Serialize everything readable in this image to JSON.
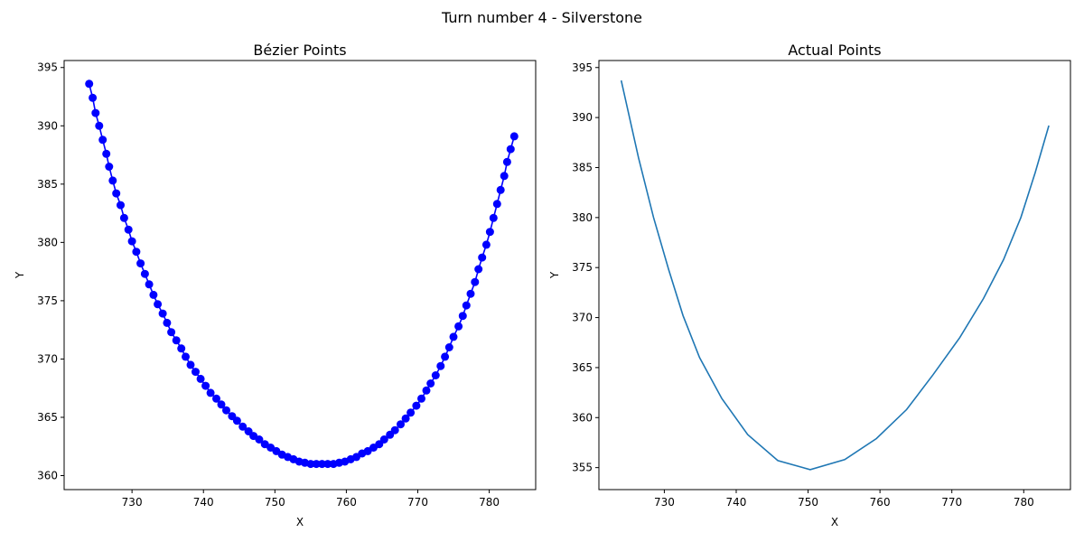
{
  "figure_title": "Turn number 4 - Silverstone",
  "chart_data": [
    {
      "type": "line",
      "title": "Bézier Points",
      "xlabel": "X",
      "ylabel": "Y",
      "xlim": [
        720.5,
        786.5
      ],
      "ylim": [
        358.8,
        395.6
      ],
      "xticks": [
        730,
        740,
        750,
        760,
        770,
        780
      ],
      "yticks": [
        360,
        365,
        370,
        375,
        380,
        385,
        390,
        395
      ],
      "line_color": "#0000ff",
      "markers": true,
      "series": [
        {
          "x": [
            724.0,
            724.5,
            724.9,
            725.4,
            725.9,
            726.4,
            726.8,
            727.3,
            727.8,
            728.4,
            728.9,
            729.5,
            730.0,
            730.6,
            731.2,
            731.8,
            732.4,
            733.0,
            733.6,
            734.3,
            734.9,
            735.5,
            736.2,
            736.9,
            737.5,
            738.2,
            738.9,
            739.6,
            740.3,
            741.0,
            741.8,
            742.5,
            743.2,
            744.0,
            744.7,
            745.5,
            746.3,
            747.0,
            747.8,
            748.6,
            749.4,
            750.2,
            751.0,
            751.8,
            752.6,
            753.4,
            754.2,
            755.0,
            755.8,
            756.6,
            757.4,
            758.2,
            759.0,
            759.8,
            760.6,
            761.4,
            762.2,
            763.0,
            763.8,
            764.6,
            765.3,
            766.1,
            766.8,
            767.6,
            768.3,
            769.0,
            769.8,
            770.5,
            771.2,
            771.8,
            772.5,
            773.2,
            773.8,
            774.4,
            775.0,
            775.7,
            776.3,
            776.8,
            777.4,
            778.0,
            778.5,
            779.0,
            779.6,
            780.1,
            780.6,
            781.1,
            781.6,
            782.1,
            782.5,
            783.0,
            783.5
          ],
          "y": [
            393.6,
            392.4,
            391.1,
            390.0,
            388.8,
            387.6,
            386.5,
            385.3,
            384.2,
            383.2,
            382.1,
            381.1,
            380.1,
            379.2,
            378.2,
            377.3,
            376.4,
            375.5,
            374.7,
            373.9,
            373.1,
            372.3,
            371.6,
            370.9,
            370.2,
            369.5,
            368.9,
            368.3,
            367.7,
            367.1,
            366.6,
            366.1,
            365.6,
            365.1,
            364.7,
            364.2,
            363.8,
            363.4,
            363.1,
            362.7,
            362.4,
            362.1,
            361.8,
            361.6,
            361.4,
            361.2,
            361.1,
            361.0,
            361.0,
            361.0,
            361.0,
            361.0,
            361.1,
            361.2,
            361.4,
            361.6,
            361.9,
            362.1,
            362.4,
            362.7,
            363.1,
            363.5,
            363.9,
            364.4,
            364.9,
            365.4,
            366.0,
            366.6,
            367.3,
            367.9,
            368.6,
            369.4,
            370.2,
            371.0,
            371.9,
            372.8,
            373.7,
            374.6,
            375.6,
            376.6,
            377.7,
            378.7,
            379.8,
            380.9,
            382.1,
            383.3,
            384.5,
            385.7,
            386.9,
            388.0,
            389.1
          ]
        }
      ]
    },
    {
      "type": "line",
      "title": "Actual Points",
      "xlabel": "X",
      "ylabel": "Y",
      "xlim": [
        720.9,
        786.5
      ],
      "ylim": [
        352.8,
        395.7
      ],
      "xticks": [
        730,
        740,
        750,
        760,
        770,
        780
      ],
      "yticks": [
        355,
        360,
        365,
        370,
        375,
        380,
        385,
        390,
        395
      ],
      "line_color": "#1f77b4",
      "markers": false,
      "series": [
        {
          "x": [
            724.0,
            726.4,
            728.5,
            730.6,
            732.6,
            734.9,
            738.0,
            741.6,
            745.8,
            750.3,
            755.1,
            759.5,
            763.7,
            767.4,
            771.1,
            774.4,
            777.2,
            779.6,
            781.6,
            783.5
          ],
          "y": [
            393.7,
            386.0,
            380.0,
            374.8,
            370.2,
            366.0,
            361.9,
            358.3,
            355.7,
            354.8,
            355.8,
            357.9,
            360.8,
            364.3,
            368.0,
            371.9,
            375.8,
            380.0,
            384.5,
            389.2
          ]
        }
      ]
    }
  ]
}
